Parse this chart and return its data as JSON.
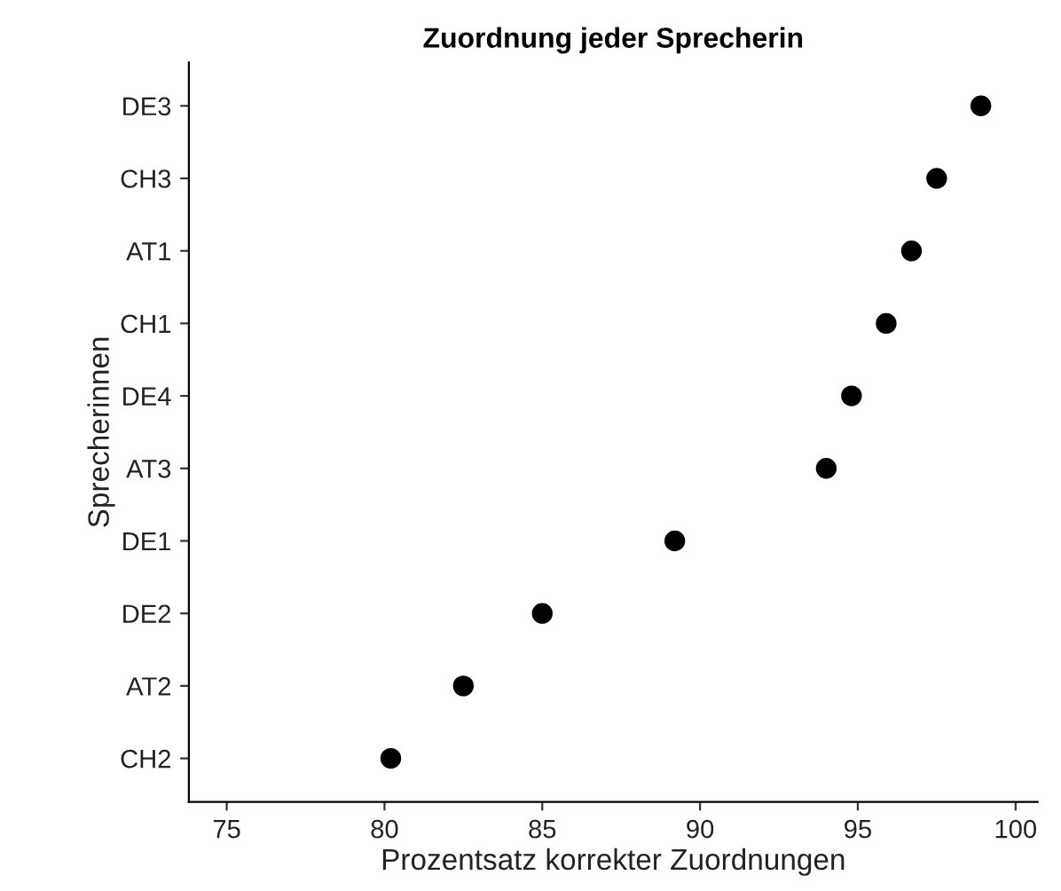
{
  "chart_data": {
    "type": "scatter",
    "orientation": "horizontal",
    "title": "Zuordnung jeder Sprecherin",
    "xlabel": "Prozentsatz korrekter Zuordnungen",
    "ylabel": "Sprecherinnen",
    "categories": [
      "DE3",
      "CH3",
      "AT1",
      "CH1",
      "DE4",
      "AT3",
      "DE1",
      "DE2",
      "AT2",
      "CH2"
    ],
    "series": [
      {
        "color": "#000000",
        "values": [
          98.9,
          97.5,
          96.7,
          95.9,
          94.8,
          94.0,
          89.2,
          85.0,
          82.5,
          80.2
        ]
      }
    ],
    "xlim": [
      73.8,
      100.7
    ],
    "xticks": [
      75,
      80,
      85,
      90,
      95,
      100
    ],
    "grid": false,
    "marker": "circle"
  }
}
